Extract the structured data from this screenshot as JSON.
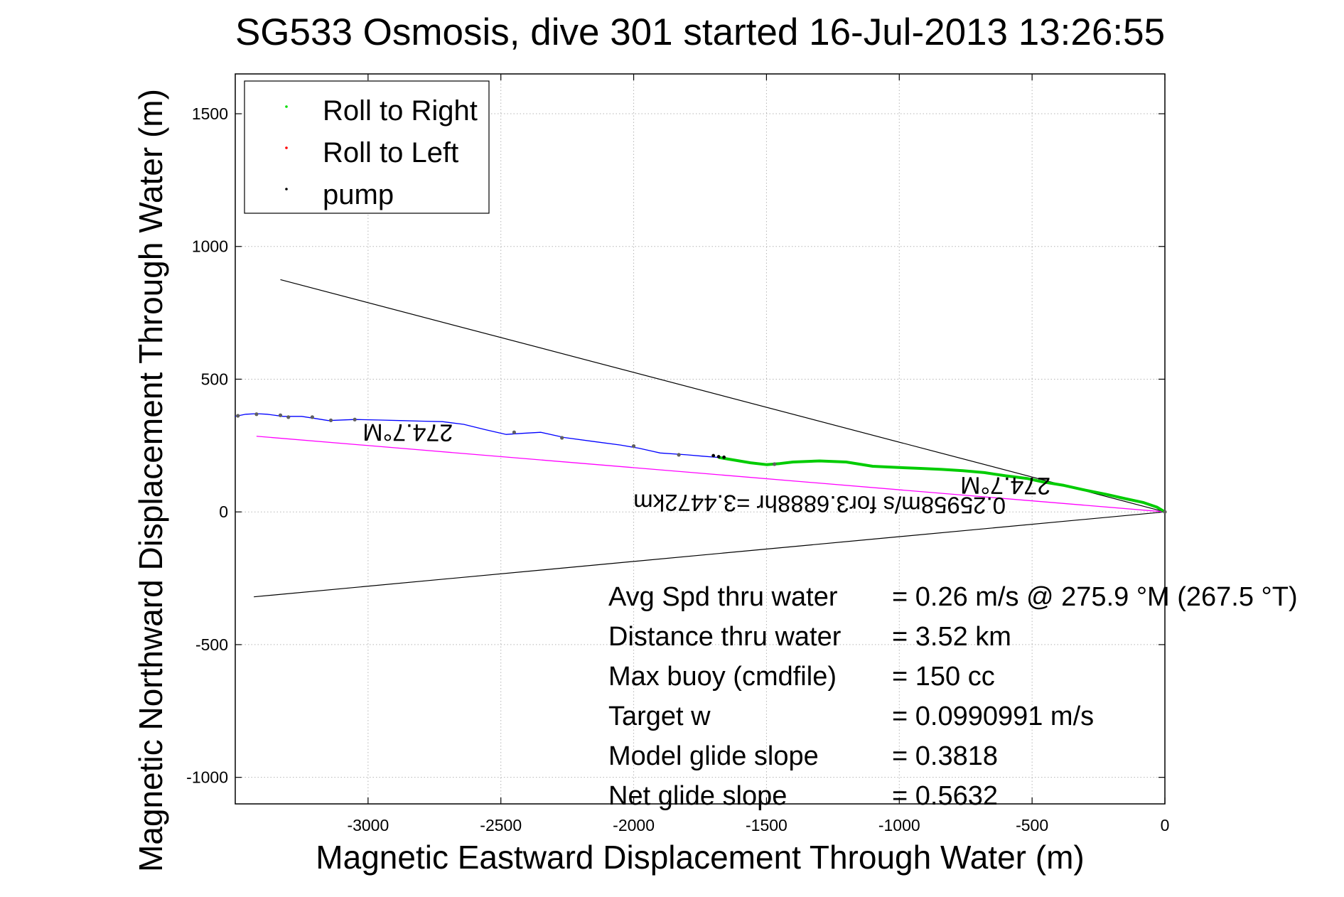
{
  "chart_data": {
    "type": "line",
    "title": "SG533 Osmosis, dive 301 started 16-Jul-2013 13:26:55",
    "xlabel": "Magnetic Eastward Displacement Through Water (m)",
    "ylabel": "Magnetic Northward Displacement Through Water (m)",
    "xlim": [
      -3500,
      0
    ],
    "ylim": [
      -1100,
      1650
    ],
    "xticks": [
      -3000,
      -2500,
      -2000,
      -1500,
      -1000,
      -500,
      0
    ],
    "yticks": [
      -1000,
      -500,
      0,
      500,
      1000,
      1500
    ],
    "grid": true,
    "legend_position": "top-left",
    "legend": [
      {
        "label": "Roll to Right",
        "color": "#00dd00"
      },
      {
        "label": "Roll to Left",
        "color": "#ff0000"
      },
      {
        "label": "pump",
        "color": "#000000"
      }
    ],
    "colors": {
      "track": "#0000ff",
      "roll_right": "#00cc00",
      "roll_left": "#ff0000",
      "pump": "#000000",
      "net_vector": "#ff00ff",
      "heading_cone": "#000000"
    },
    "track": {
      "x": [
        0,
        -30,
        -80,
        -150,
        -220,
        -300,
        -380,
        -460,
        -520,
        -600,
        -680,
        -760,
        -840,
        -920,
        -1000,
        -1100,
        -1200,
        -1300,
        -1400,
        -1450,
        -1500,
        -1560,
        -1620,
        -1680,
        -1740,
        -1800,
        -1900,
        -1980,
        -2050,
        -2150,
        -2260,
        -2350,
        -2420,
        -2480,
        -2560,
        -2640,
        -2720,
        -2800,
        -2880,
        -2950,
        -3050,
        -3150,
        -3200,
        -3250,
        -3320,
        -3380,
        -3420,
        -3460,
        -3500
      ],
      "y": [
        0,
        18,
        35,
        50,
        66,
        82,
        100,
        113,
        126,
        136,
        148,
        155,
        160,
        164,
        167,
        172,
        188,
        192,
        188,
        182,
        178,
        185,
        195,
        205,
        210,
        215,
        222,
        240,
        252,
        265,
        280,
        300,
        296,
        292,
        310,
        330,
        340,
        342,
        344,
        346,
        348,
        344,
        352,
        360,
        360,
        368,
        370,
        368,
        360
      ]
    },
    "roll_right_segment": {
      "x_start": -1700,
      "x_end": 0
    },
    "pump_points": [
      {
        "x": -1700,
        "y": 212
      },
      {
        "x": -1680,
        "y": 208
      },
      {
        "x": -1660,
        "y": 206
      }
    ],
    "markers": [
      {
        "x": -3490,
        "y": 362
      },
      {
        "x": -3420,
        "y": 368
      },
      {
        "x": -3330,
        "y": 364
      },
      {
        "x": -3300,
        "y": 357
      },
      {
        "x": -3210,
        "y": 357
      },
      {
        "x": -3140,
        "y": 345
      },
      {
        "x": -3050,
        "y": 348
      },
      {
        "x": -2450,
        "y": 300
      },
      {
        "x": -2270,
        "y": 279
      },
      {
        "x": -2000,
        "y": 248
      },
      {
        "x": -1830,
        "y": 215
      },
      {
        "x": -1470,
        "y": 180
      },
      {
        "x": 0,
        "y": 0
      }
    ],
    "net_vector": {
      "x0": 0,
      "y0": 0,
      "x1": -3420,
      "y1": 285
    },
    "cone_lines": [
      {
        "x0": 0,
        "y0": 0,
        "x1": -3330,
        "y1": 875
      },
      {
        "x0": 0,
        "y0": 0,
        "x1": -3430,
        "y1": -320
      }
    ],
    "annotations": [
      {
        "text": "274.7°M",
        "x": -2850,
        "y": 330
      },
      {
        "text": "274.7°M",
        "x": -600,
        "y": 130
      },
      {
        "text": "0.25958m/s for3.6888hr =3.4472km",
        "x": -1300,
        "y": 60
      }
    ],
    "stats": [
      {
        "label": "Avg Spd thru water",
        "value": "=  0.26 m/s @ 275.9 °M (267.5 °T)"
      },
      {
        "label": "Distance thru water",
        "value": "=  3.52 km"
      },
      {
        "label": "Max buoy (cmdfile)",
        "value": "= 150 cc"
      },
      {
        "label": "Target w",
        "value": "= 0.0990991 m/s"
      },
      {
        "label": "Model glide slope",
        "value": "= 0.3818"
      },
      {
        "label": "Net glide slope",
        "value": "= 0.5632"
      }
    ]
  }
}
